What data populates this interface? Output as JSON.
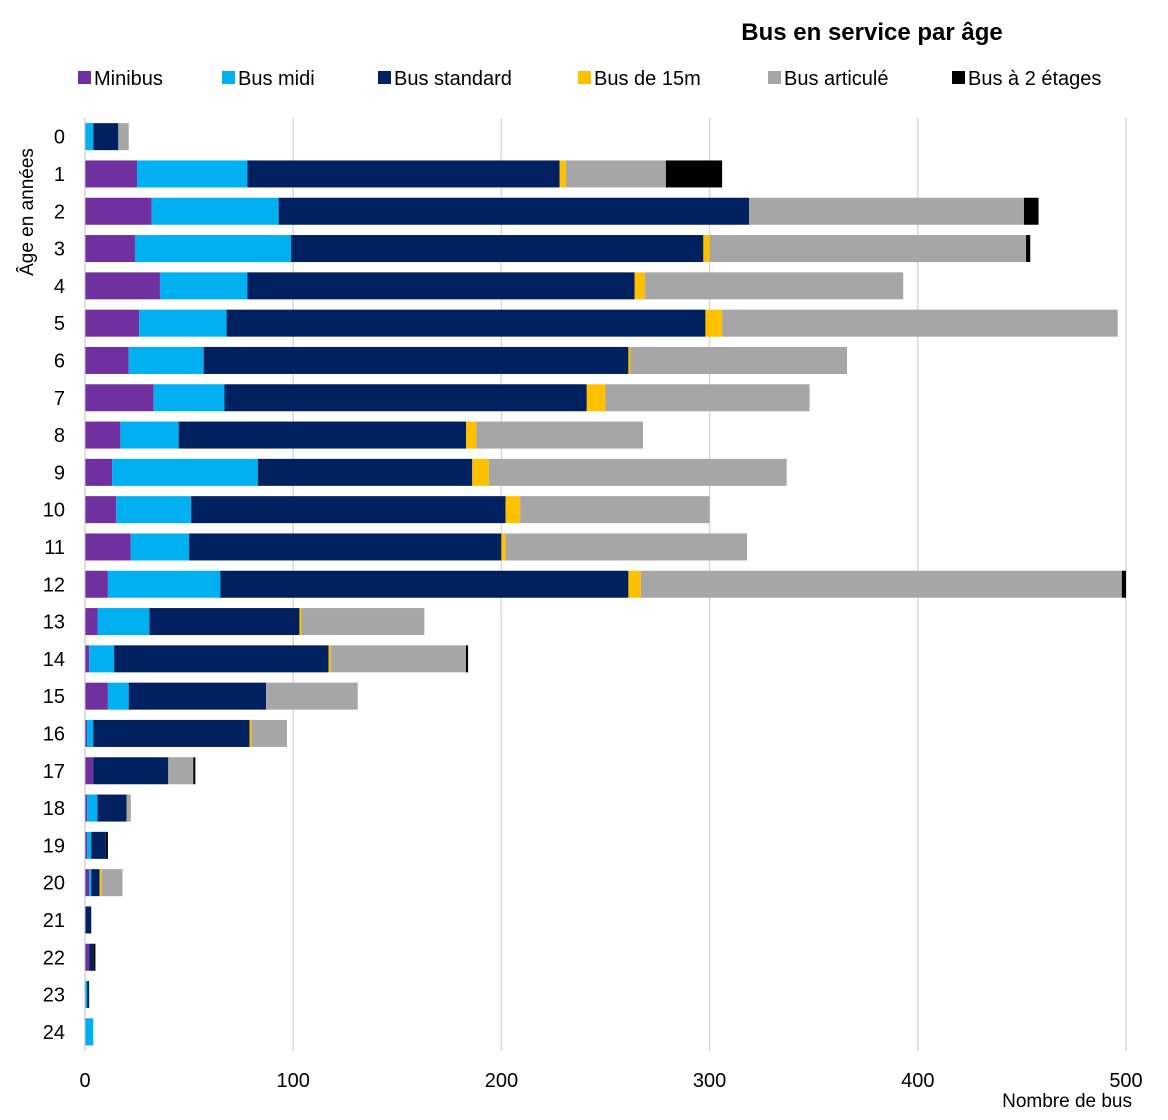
{
  "chart_data": {
    "type": "bar",
    "orientation": "horizontal",
    "stacked": true,
    "title": "Bus en service par âge",
    "xlabel": "Nombre de bus",
    "ylabel": "Âge en années",
    "xlim": [
      0,
      500
    ],
    "x_ticks": [
      "0",
      "100",
      "200",
      "300",
      "400",
      "500"
    ],
    "x_tick_values": [
      0,
      100,
      200,
      300,
      400,
      500
    ],
    "grid": "vertical",
    "legend_position": "top",
    "categories": [
      "0",
      "1",
      "2",
      "3",
      "4",
      "5",
      "6",
      "7",
      "8",
      "9",
      "10",
      "11",
      "12",
      "13",
      "14",
      "15",
      "16",
      "17",
      "18",
      "19",
      "20",
      "21",
      "22",
      "23",
      "24"
    ],
    "series": [
      {
        "name": "Minibus",
        "color": "#7030A0",
        "values": [
          0,
          25,
          32,
          24,
          36,
          26,
          21,
          33,
          17,
          13,
          15,
          22,
          11,
          6,
          2,
          11,
          1,
          4,
          1,
          1,
          2,
          0,
          2,
          0,
          0
        ]
      },
      {
        "name": "Bus midi",
        "color": "#00B0F0",
        "values": [
          4,
          53,
          61,
          75,
          42,
          42,
          36,
          34,
          28,
          70,
          36,
          28,
          54,
          25,
          12,
          10,
          3,
          0,
          5,
          2,
          1,
          0,
          0,
          1,
          4
        ]
      },
      {
        "name": "Bus standard",
        "color": "#002060",
        "values": [
          12,
          150,
          226,
          198,
          186,
          230,
          204,
          174,
          138,
          103,
          151,
          150,
          196,
          72,
          103,
          66,
          75,
          36,
          14,
          7,
          4,
          3,
          2,
          1,
          0
        ]
      },
      {
        "name": "Bus de 15m",
        "color": "#FFC000",
        "values": [
          0,
          3,
          0,
          3,
          5,
          8,
          1,
          9,
          5,
          8,
          7,
          2,
          6,
          1,
          1,
          0,
          1,
          0,
          0,
          0,
          1,
          0,
          0,
          0,
          0
        ]
      },
      {
        "name": "Bus articulé",
        "color": "#A6A6A6",
        "values": [
          5,
          48,
          132,
          152,
          124,
          190,
          104,
          98,
          80,
          143,
          91,
          116,
          231,
          59,
          65,
          44,
          17,
          12,
          2,
          0,
          10,
          0,
          0,
          0,
          0
        ]
      },
      {
        "name": "Bus à 2 étages",
        "color": "#000000",
        "values": [
          0,
          27,
          7,
          2,
          0,
          0,
          0,
          0,
          0,
          0,
          0,
          0,
          2,
          0,
          1,
          0,
          0,
          1,
          0,
          1,
          0,
          0,
          1,
          0,
          0
        ]
      }
    ]
  }
}
